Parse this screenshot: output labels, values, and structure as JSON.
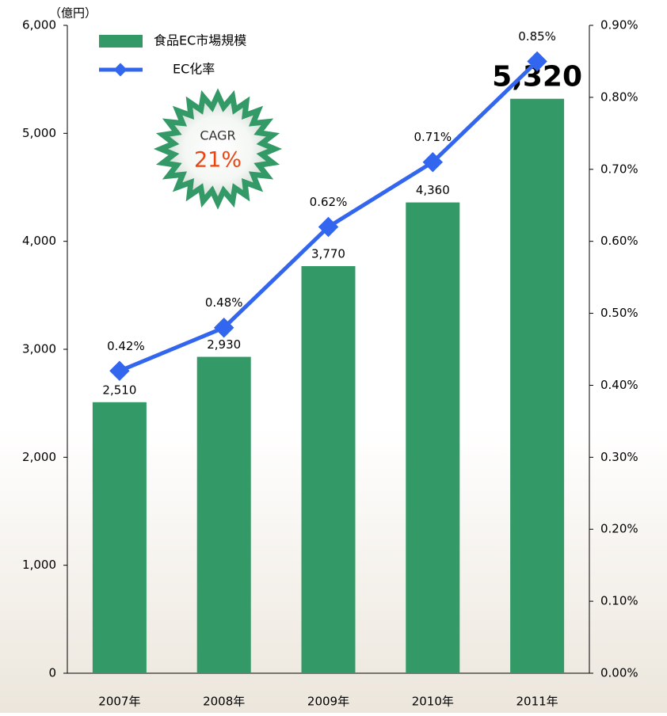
{
  "chart_data": {
    "type": "bar",
    "y_label": "（億円）",
    "categories": [
      "2007年",
      "2008年",
      "2009年",
      "2010年",
      "2011年"
    ],
    "series": [
      {
        "name": "食品EC市場規模",
        "type": "bar",
        "color": "#339966",
        "values": [
          2510,
          2930,
          3770,
          4360,
          5320
        ],
        "value_labels": [
          "2,510",
          "2,930",
          "3,770",
          "4,360",
          "5,320"
        ]
      },
      {
        "name": "EC化率",
        "type": "line",
        "axis": "y2",
        "color": "#3366ee",
        "values": [
          0.42,
          0.48,
          0.62,
          0.71,
          0.85
        ],
        "value_labels": [
          "0.42%",
          "0.48%",
          "0.62%",
          "0.71%",
          "0.85%"
        ]
      }
    ],
    "ylim": [
      0,
      6000
    ],
    "yticks": [
      0,
      {
        "value": 1000,
        "label": "1,000"
      },
      {
        "value": 2000,
        "label": "2,000"
      },
      {
        "value": 3000,
        "label": "3,000"
      },
      {
        "value": 4000,
        "label": "4,000"
      },
      {
        "value": 5000,
        "label": "5,000"
      },
      {
        "value": 6000,
        "label": "6,000"
      }
    ],
    "y2lim": [
      0,
      0.9
    ],
    "y2ticks": [
      {
        "value": 0,
        "label": "0.00%"
      },
      {
        "value": 0.1,
        "label": "0.10%"
      },
      {
        "value": 0.2,
        "label": "0.20%"
      },
      {
        "value": 0.3,
        "label": "0.30%"
      },
      {
        "value": 0.4,
        "label": "0.40%"
      },
      {
        "value": 0.5,
        "label": "0.50%"
      },
      {
        "value": 0.6,
        "label": "0.60%"
      },
      {
        "value": 0.7,
        "label": "0.70%"
      },
      {
        "value": 0.8,
        "label": "0.80%"
      },
      {
        "value": 0.9,
        "label": "0.90%"
      }
    ],
    "annotation": {
      "title": "CAGR",
      "text": "21%"
    }
  }
}
